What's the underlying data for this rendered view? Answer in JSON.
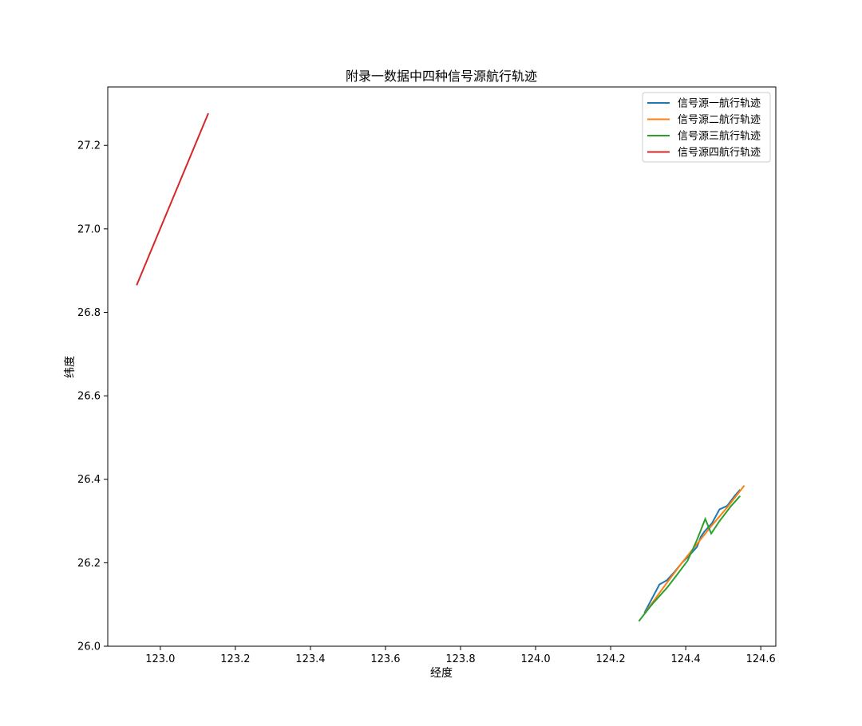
{
  "chart_data": {
    "type": "line",
    "title": "附录一数据中四种信号源航行轨迹",
    "xlabel": "经度",
    "ylabel": "纬度",
    "xlim": [
      122.86,
      124.64
    ],
    "ylim": [
      26.0,
      27.34
    ],
    "xticks": [
      123.0,
      123.2,
      123.4,
      123.6,
      123.8,
      124.0,
      124.2,
      124.4,
      124.6
    ],
    "xtick_labels": [
      "123.0",
      "123.2",
      "123.4",
      "123.6",
      "123.8",
      "124.0",
      "124.2",
      "124.4",
      "124.6"
    ],
    "yticks": [
      26.0,
      26.2,
      26.4,
      26.6,
      26.8,
      27.0,
      27.2
    ],
    "ytick_labels": [
      "26.0",
      "26.2",
      "26.4",
      "26.6",
      "26.8",
      "27.0",
      "27.2"
    ],
    "grid": false,
    "legend_position": "top-right",
    "series": [
      {
        "name": "信号源一航行轨迹",
        "color": "#1f77b4",
        "x": [
          124.29,
          124.33,
          124.35,
          124.37,
          124.39,
          124.41,
          124.43,
          124.44,
          124.45,
          124.47,
          124.49,
          124.51,
          124.53,
          124.545
        ],
        "y": [
          26.08,
          26.148,
          26.158,
          26.178,
          26.2,
          26.218,
          26.238,
          26.262,
          26.275,
          26.295,
          26.328,
          26.336,
          26.36,
          26.375
        ]
      },
      {
        "name": "信号源二航行轨迹",
        "color": "#ff7f0e",
        "x": [
          124.29,
          124.34,
          124.39,
          124.43,
          124.47,
          124.51,
          124.556
        ],
        "y": [
          26.078,
          26.14,
          26.2,
          26.245,
          26.29,
          26.332,
          26.385
        ]
      },
      {
        "name": "信号源三航行轨迹",
        "color": "#2ca02c",
        "x": [
          124.275,
          124.31,
          124.35,
          124.38,
          124.405,
          124.43,
          124.452,
          124.468,
          124.49,
          124.52,
          124.545
        ],
        "y": [
          26.06,
          26.1,
          26.14,
          26.175,
          26.205,
          26.255,
          26.305,
          26.27,
          26.3,
          26.335,
          26.36
        ]
      },
      {
        "name": "信号源四航行轨迹",
        "color": "#d62728",
        "x": [
          122.937,
          123.128
        ],
        "y": [
          26.865,
          27.277
        ]
      }
    ]
  }
}
